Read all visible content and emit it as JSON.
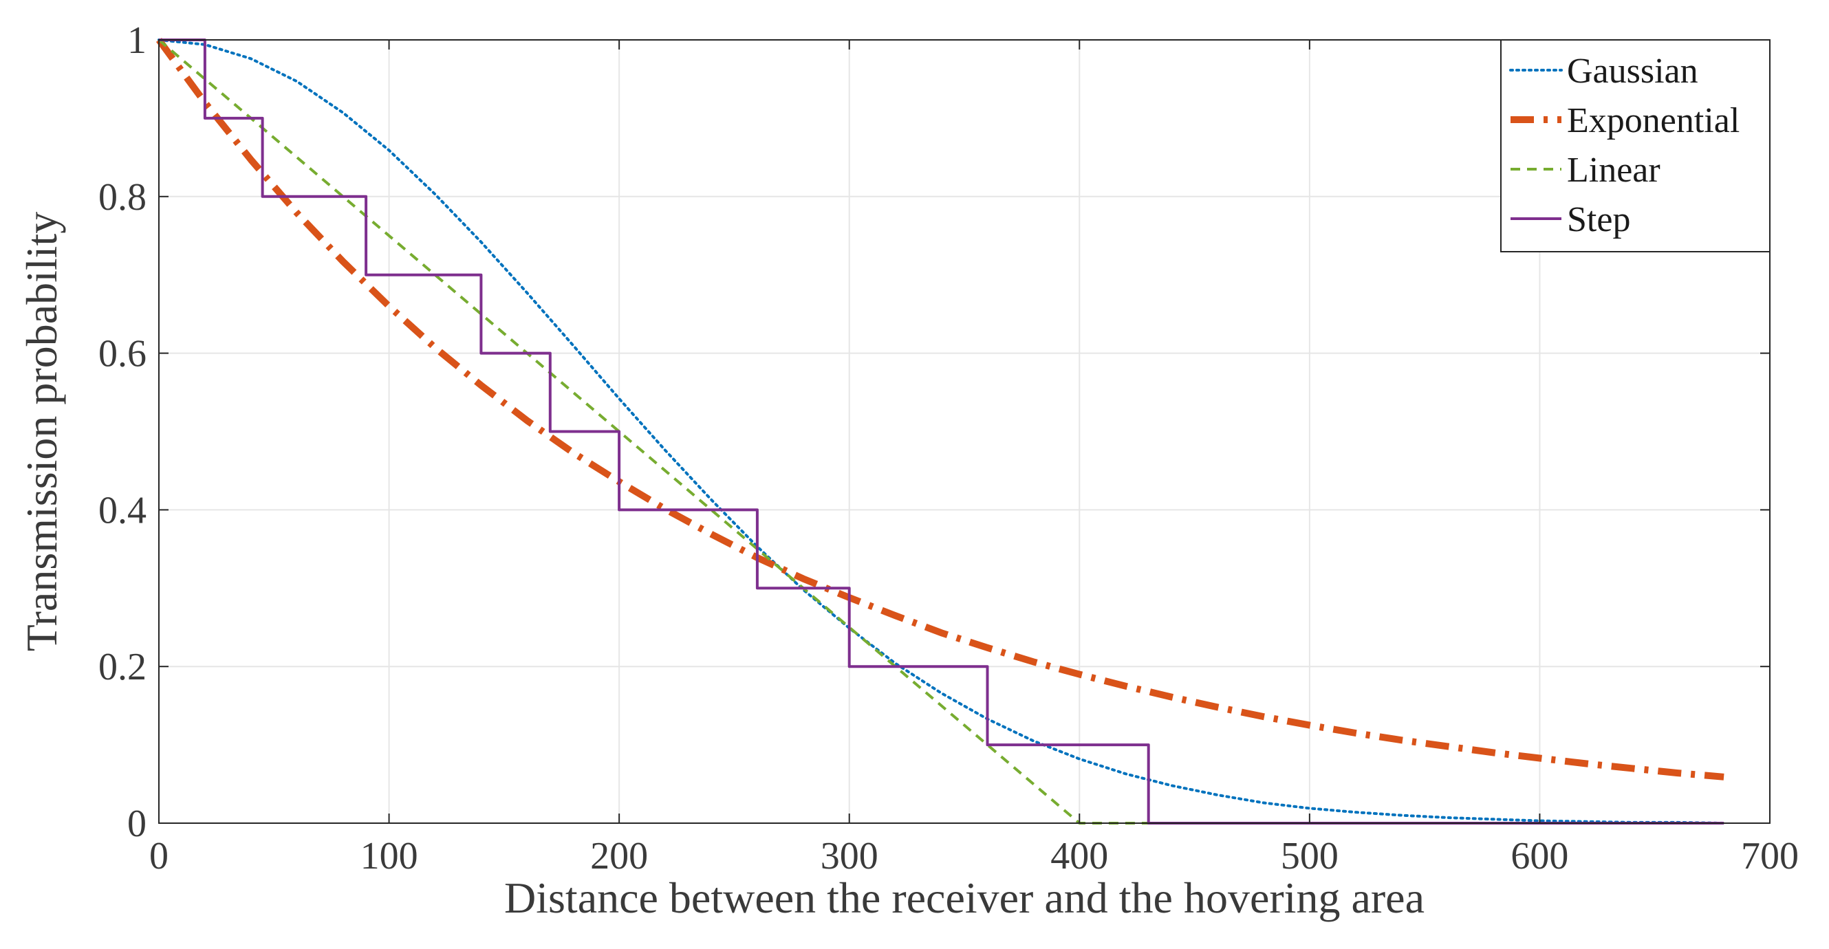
{
  "chart_data": {
    "type": "line",
    "title": "",
    "xlabel": "Distance between the receiver and the hovering area",
    "ylabel": "Transmission probability",
    "xlim": [
      0,
      700
    ],
    "ylim": [
      0,
      1
    ],
    "xticks": [
      0,
      100,
      200,
      300,
      400,
      500,
      600,
      700
    ],
    "yticks": [
      0,
      0.2,
      0.4,
      0.6,
      0.8,
      1
    ],
    "xtick_labels": [
      "0",
      "100",
      "200",
      "300",
      "400",
      "500",
      "600",
      "700"
    ],
    "ytick_labels": [
      "0",
      "0.2",
      "0.4",
      "0.6",
      "0.8",
      "1"
    ],
    "grid": true,
    "legend_position": "top-right",
    "series": [
      {
        "name": "Gaussian",
        "color": "#0072BD",
        "style": "dotted",
        "x": [
          0,
          20,
          40,
          60,
          80,
          100,
          120,
          140,
          160,
          180,
          200,
          220,
          240,
          260,
          280,
          300,
          320,
          340,
          360,
          380,
          400,
          420,
          440,
          460,
          480,
          500,
          520,
          540,
          560,
          580,
          600,
          620,
          640,
          660,
          680
        ],
        "y": [
          1.0,
          0.994,
          0.976,
          0.947,
          0.907,
          0.859,
          0.803,
          0.742,
          0.677,
          0.61,
          0.542,
          0.476,
          0.413,
          0.353,
          0.298,
          0.249,
          0.204,
          0.166,
          0.133,
          0.105,
          0.082,
          0.063,
          0.048,
          0.036,
          0.026,
          0.019,
          0.014,
          0.01,
          0.007,
          0.005,
          0.003,
          0.002,
          0.001,
          0.001,
          0.0
        ]
      },
      {
        "name": "Exponential",
        "color": "#D95319",
        "style": "dashdot",
        "x": [
          0,
          20,
          40,
          60,
          80,
          100,
          120,
          140,
          160,
          180,
          200,
          220,
          240,
          260,
          280,
          300,
          320,
          340,
          360,
          380,
          400,
          420,
          440,
          460,
          480,
          500,
          520,
          540,
          560,
          580,
          600,
          620,
          640,
          660,
          680
        ],
        "y": [
          1.0,
          0.92,
          0.847,
          0.779,
          0.717,
          0.66,
          0.607,
          0.559,
          0.514,
          0.473,
          0.436,
          0.401,
          0.369,
          0.339,
          0.312,
          0.288,
          0.265,
          0.243,
          0.224,
          0.206,
          0.19,
          0.175,
          0.161,
          0.148,
          0.136,
          0.125,
          0.115,
          0.106,
          0.098,
          0.09,
          0.083,
          0.076,
          0.07,
          0.064,
          0.059
        ]
      },
      {
        "name": "Linear",
        "color": "#77AC30",
        "style": "dashed",
        "x": [
          0,
          400,
          680
        ],
        "y": [
          1.0,
          0.0,
          0.0
        ]
      },
      {
        "name": "Step",
        "color": "#7E2F8E",
        "style": "solid",
        "x": [
          0,
          20,
          20,
          45,
          45,
          90,
          90,
          140,
          140,
          170,
          170,
          200,
          200,
          260,
          260,
          300,
          300,
          360,
          360,
          430,
          430,
          680
        ],
        "y": [
          1.0,
          1.0,
          0.9,
          0.9,
          0.8,
          0.8,
          0.7,
          0.7,
          0.6,
          0.6,
          0.5,
          0.5,
          0.4,
          0.4,
          0.3,
          0.3,
          0.2,
          0.2,
          0.1,
          0.1,
          0.0,
          0.0
        ]
      }
    ]
  }
}
